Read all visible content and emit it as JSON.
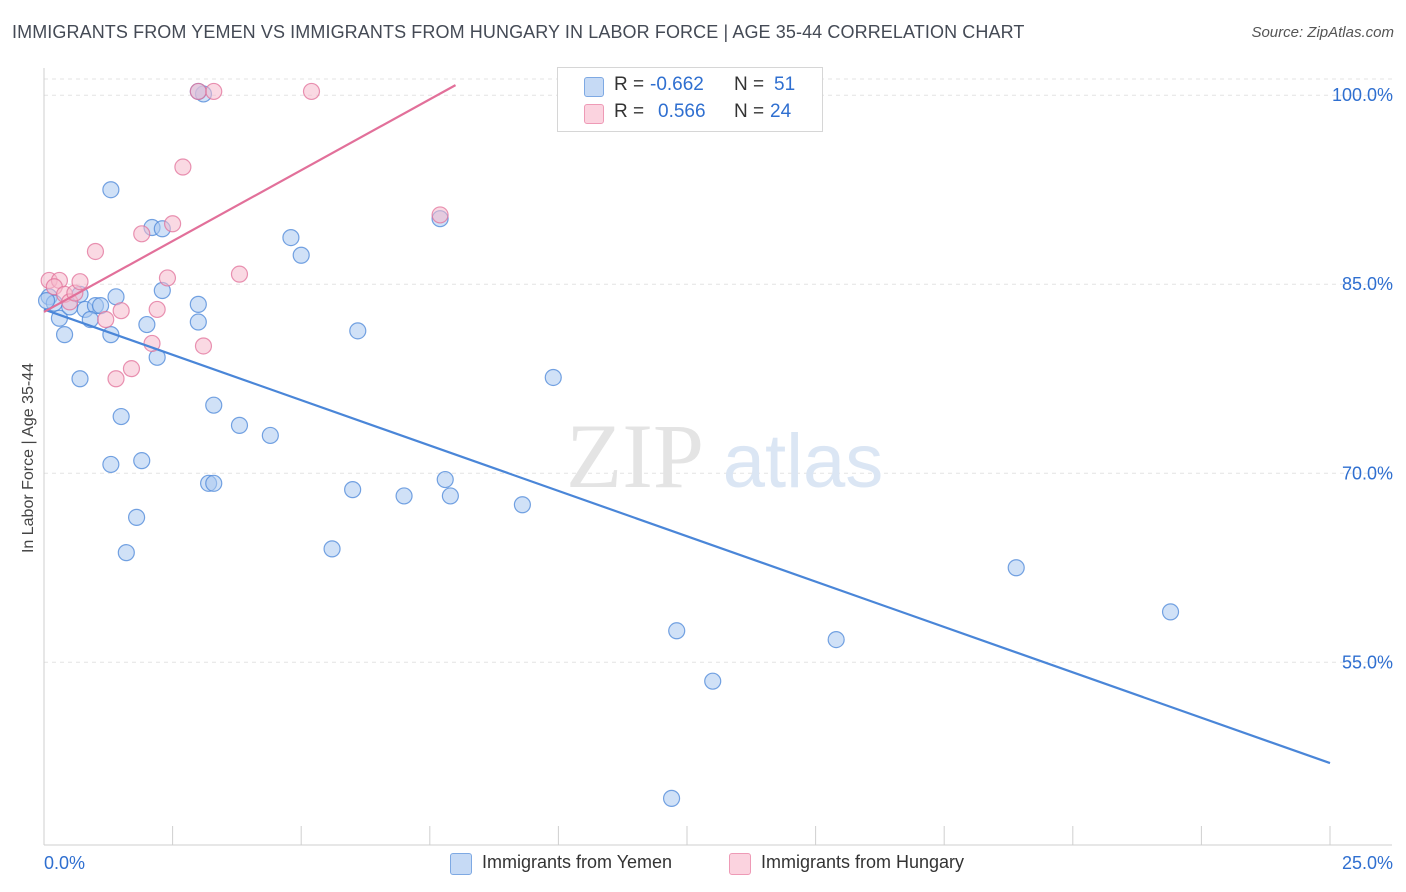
{
  "header": {
    "title": "IMMIGRANTS FROM YEMEN VS IMMIGRANTS FROM HUNGARY IN LABOR FORCE | AGE 35-44 CORRELATION CHART",
    "source": "Source: ZipAtlas.com"
  },
  "watermark": {
    "zip": "ZIP",
    "atlas": "atlas"
  },
  "legend": {
    "rows": [
      {
        "r_label": "R =",
        "r_value": "-0.662",
        "n_label": "N =",
        "n_value": "51",
        "color": "#a9c8f0"
      },
      {
        "r_label": "R =",
        "r_value": "0.566",
        "n_label": "N =",
        "n_value": "24",
        "color": "#f6b9cc"
      }
    ]
  },
  "chart_data": {
    "type": "scatter",
    "title": "IMMIGRANTS FROM YEMEN VS IMMIGRANTS FROM HUNGARY IN LABOR FORCE | AGE 35-44 CORRELATION CHART",
    "ylabel": "In Labor Force | Age 35-44",
    "xlabel": "",
    "xlim": [
      0,
      25
    ],
    "ylim": [
      40.5,
      102
    ],
    "x_tick_labels": [
      "0.0%",
      "25.0%"
    ],
    "y_tick_labels": [
      "100.0%",
      "85.0%",
      "70.0%",
      "55.0%"
    ],
    "y_ticks": [
      100,
      85,
      70,
      55
    ],
    "grid": true,
    "legend_position": "bottom",
    "series": [
      {
        "name": "Immigrants from Yemen",
        "color": "#4a86d8",
        "fill": "#a9c8f0",
        "trend": {
          "x": [
            0,
            25
          ],
          "y": [
            83.0,
            47.0
          ]
        },
        "points": [
          [
            0.1,
            84.0
          ],
          [
            0.2,
            83.5
          ],
          [
            0.3,
            82.3
          ],
          [
            0.5,
            83.2
          ],
          [
            0.7,
            84.2
          ],
          [
            0.4,
            81.0
          ],
          [
            0.8,
            83.0
          ],
          [
            1.0,
            83.3
          ],
          [
            0.9,
            82.2
          ],
          [
            1.1,
            83.3
          ],
          [
            1.4,
            84.0
          ],
          [
            1.3,
            81.0
          ],
          [
            0.7,
            77.5
          ],
          [
            1.5,
            74.5
          ],
          [
            1.3,
            70.7
          ],
          [
            1.8,
            66.5
          ],
          [
            1.6,
            63.7
          ],
          [
            1.9,
            71.0
          ],
          [
            2.0,
            81.8
          ],
          [
            2.2,
            79.2
          ],
          [
            2.3,
            84.5
          ],
          [
            2.1,
            89.5
          ],
          [
            2.3,
            89.4
          ],
          [
            1.3,
            92.5
          ],
          [
            3.0,
            83.4
          ],
          [
            3.0,
            82.0
          ],
          [
            3.2,
            69.2
          ],
          [
            3.3,
            69.2
          ],
          [
            3.3,
            75.4
          ],
          [
            3.8,
            73.8
          ],
          [
            4.4,
            73.0
          ],
          [
            4.8,
            88.7
          ],
          [
            5.0,
            87.3
          ],
          [
            5.6,
            64.0
          ],
          [
            6.0,
            68.7
          ],
          [
            6.1,
            81.3
          ],
          [
            7.0,
            68.2
          ],
          [
            7.8,
            69.5
          ],
          [
            7.9,
            68.2
          ],
          [
            7.7,
            90.2
          ],
          [
            9.3,
            67.5
          ],
          [
            9.9,
            77.6
          ],
          [
            12.3,
            57.5
          ],
          [
            13.0,
            53.5
          ],
          [
            12.2,
            44.2
          ],
          [
            15.4,
            56.8
          ],
          [
            18.9,
            62.5
          ],
          [
            21.9,
            59.0
          ],
          [
            0.05,
            83.7
          ],
          [
            3.1,
            100.1
          ],
          [
            3.0,
            100.3
          ]
        ]
      },
      {
        "name": "Immigrants from Hungary",
        "color": "#e2709a",
        "fill": "#f6b9cc",
        "trend": {
          "x": [
            0,
            8
          ],
          "y": [
            82.8,
            100.8
          ]
        },
        "points": [
          [
            0.1,
            85.3
          ],
          [
            0.3,
            85.3
          ],
          [
            0.2,
            84.8
          ],
          [
            0.4,
            84.2
          ],
          [
            0.5,
            83.6
          ],
          [
            0.6,
            84.3
          ],
          [
            0.7,
            85.2
          ],
          [
            1.0,
            87.6
          ],
          [
            1.2,
            82.2
          ],
          [
            1.5,
            82.9
          ],
          [
            1.4,
            77.5
          ],
          [
            1.7,
            78.3
          ],
          [
            1.9,
            89.0
          ],
          [
            2.1,
            80.3
          ],
          [
            2.2,
            83.0
          ],
          [
            2.4,
            85.5
          ],
          [
            2.5,
            89.8
          ],
          [
            2.7,
            94.3
          ],
          [
            3.1,
            80.1
          ],
          [
            3.8,
            85.8
          ],
          [
            3.0,
            100.3
          ],
          [
            3.3,
            100.3
          ],
          [
            5.2,
            100.3
          ],
          [
            7.7,
            90.5
          ]
        ]
      }
    ]
  },
  "bottom_legend": {
    "items": [
      {
        "label": "Immigrants from Yemen",
        "color": "#a9c8f0"
      },
      {
        "label": "Immigrants from Hungary",
        "color": "#f6b9cc"
      }
    ]
  }
}
